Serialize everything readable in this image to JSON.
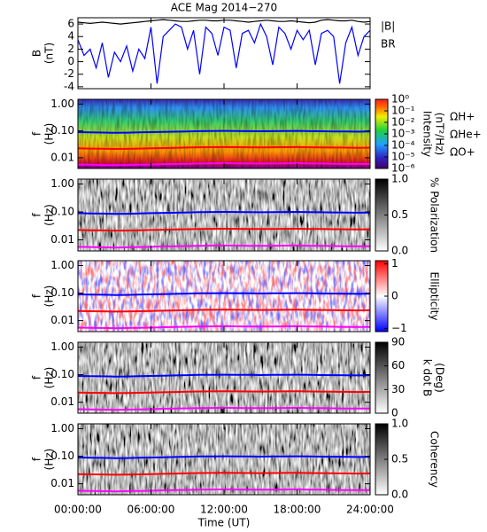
{
  "chart_data": [
    {
      "type": "line",
      "title": "ACE Mag 2014−270",
      "ylabel": [
        "B",
        "(nT)"
      ],
      "xlim": [
        0,
        24
      ],
      "ylim": [
        -4.3,
        7
      ],
      "yticks": [
        -4,
        -2,
        0,
        2,
        4,
        6
      ],
      "x": [
        0,
        0.5,
        1,
        1.5,
        2,
        2.5,
        3,
        3.5,
        4,
        4.5,
        5,
        5.5,
        6,
        6.5,
        7,
        7.5,
        8,
        8.5,
        9,
        9.5,
        10,
        10.5,
        11,
        11.5,
        12,
        12.5,
        13,
        13.5,
        14,
        14.5,
        15,
        15.5,
        16,
        16.5,
        17,
        17.5,
        18,
        18.5,
        19,
        19.5,
        20,
        20.5,
        21,
        21.5,
        22,
        22.5,
        23,
        23.5,
        24
      ],
      "series": [
        {
          "name": "|B|",
          "color": "#000000",
          "values": [
            6.3,
            6.2,
            6.1,
            6.2,
            6.3,
            6.2,
            6.1,
            6.0,
            6.1,
            6.2,
            6.3,
            6.4,
            6.5,
            6.6,
            6.7,
            6.6,
            6.5,
            6.4,
            6.4,
            6.5,
            6.6,
            6.6,
            6.5,
            6.5,
            6.6,
            6.6,
            6.5,
            6.4,
            6.3,
            6.4,
            6.5,
            6.6,
            6.5,
            6.4,
            6.4,
            6.5,
            6.4,
            6.3,
            6.2,
            6.3,
            6.6,
            6.7,
            6.6,
            6.5,
            6.5,
            6.6,
            6.4,
            6.3,
            6.4
          ]
        },
        {
          "name": "BR",
          "color": "#0000ff",
          "values": [
            3.5,
            1.0,
            2.0,
            -1.0,
            3.0,
            -2.5,
            1.5,
            0.0,
            2.5,
            -1.5,
            2.0,
            0.5,
            5.5,
            -3.5,
            4.0,
            5.0,
            6.0,
            5.5,
            2.0,
            5.0,
            -2.0,
            5.5,
            4.5,
            1.0,
            5.5,
            5.0,
            -1.0,
            4.5,
            5.0,
            3.0,
            6.0,
            4.0,
            -0.5,
            5.5,
            4.5,
            2.0,
            5.0,
            3.5,
            5.0,
            -0.5,
            4.5,
            5.0,
            4.0,
            -3.5,
            3.0,
            5.5,
            1.0,
            4.0,
            5.0
          ]
        }
      ]
    },
    {
      "type": "spectrogram",
      "ylabel": [
        "f",
        "(Hz)"
      ],
      "ylog": true,
      "ylim": [
        0.004,
        1.5
      ],
      "yticks": [
        {
          "value": 1,
          "label": "1.00"
        },
        {
          "value": 0.1,
          "label": "0.10"
        },
        {
          "value": 0.01,
          "label": "0.01"
        }
      ],
      "zlabel": [
        "Intensity",
        "(nT²/Hz)"
      ],
      "colormap": "rainbow",
      "zlog": true,
      "zlim": [
        1e-06,
        1
      ],
      "zticks": [
        {
          "value": 1,
          "label": "10⁰"
        },
        {
          "value": 0.1,
          "label": "10⁻¹"
        },
        {
          "value": 0.01,
          "label": "10⁻²"
        },
        {
          "value": 0.001,
          "label": "10⁻³"
        },
        {
          "value": 0.0001,
          "label": "10⁻⁴"
        },
        {
          "value": 1e-05,
          "label": "10⁻⁵"
        },
        {
          "value": 1e-06,
          "label": "10⁻⁶"
        }
      ],
      "x": [
        0,
        1,
        2,
        3,
        4,
        5,
        6,
        7,
        8,
        9,
        10,
        11,
        12,
        13,
        14,
        15,
        16,
        17,
        18,
        19,
        20,
        21,
        22,
        23,
        24
      ],
      "series": [
        {
          "name": "ΩH+",
          "color": "#0000ff",
          "values": [
            0.09,
            0.088,
            0.087,
            0.085,
            0.086,
            0.088,
            0.09,
            0.092,
            0.094,
            0.096,
            0.098,
            0.099,
            0.1,
            0.099,
            0.098,
            0.097,
            0.098,
            0.099,
            0.1,
            0.098,
            0.097,
            0.096,
            0.095,
            0.094,
            0.095
          ]
        },
        {
          "name": "ΩHe+",
          "color": "#ff0000",
          "values": [
            0.0225,
            0.022,
            0.0218,
            0.0213,
            0.0215,
            0.022,
            0.0225,
            0.023,
            0.0235,
            0.024,
            0.0245,
            0.0248,
            0.025,
            0.0248,
            0.0245,
            0.0243,
            0.0245,
            0.0248,
            0.025,
            0.0245,
            0.0243,
            0.024,
            0.0238,
            0.0235,
            0.0238
          ]
        },
        {
          "name": "ΩO+",
          "color": "#ff00ff",
          "values": [
            0.0056,
            0.0055,
            0.0054,
            0.0053,
            0.0054,
            0.0055,
            0.0056,
            0.0058,
            0.0059,
            0.006,
            0.0061,
            0.0062,
            0.0063,
            0.0062,
            0.0061,
            0.0061,
            0.0061,
            0.0062,
            0.0063,
            0.0061,
            0.0061,
            0.006,
            0.0059,
            0.0059,
            0.0059
          ]
        }
      ]
    },
    {
      "type": "spectrogram",
      "ylabel": [
        "f",
        "(Hz)"
      ],
      "ylog": true,
      "ylim": [
        0.004,
        1.5
      ],
      "yticks": [
        {
          "value": 1,
          "label": "1.00"
        },
        {
          "value": 0.1,
          "label": "0.10"
        },
        {
          "value": 0.01,
          "label": "0.01"
        }
      ],
      "zlabel": [
        "% Polarization"
      ],
      "colormap": "gray",
      "zlim": [
        0,
        1
      ],
      "zticks": [
        {
          "value": 0,
          "label": "0.0"
        },
        {
          "value": 0.5,
          "label": "0.5"
        },
        {
          "value": 1,
          "label": "1.0"
        }
      ]
    },
    {
      "type": "spectrogram",
      "ylabel": [
        "f",
        "(Hz)"
      ],
      "ylog": true,
      "ylim": [
        0.004,
        1.5
      ],
      "yticks": [
        {
          "value": 1,
          "label": "1.00"
        },
        {
          "value": 0.1,
          "label": "0.10"
        },
        {
          "value": 0.01,
          "label": "0.01"
        }
      ],
      "zlabel": [
        "Ellipticity"
      ],
      "colormap": "bwr",
      "zlim": [
        -1.1,
        1.1
      ],
      "zticks": [
        {
          "value": -1,
          "label": "−1"
        },
        0,
        1
      ]
    },
    {
      "type": "spectrogram",
      "ylabel": [
        "f",
        "(Hz)"
      ],
      "ylog": true,
      "ylim": [
        0.004,
        1.5
      ],
      "yticks": [
        {
          "value": 1,
          "label": "1.00"
        },
        {
          "value": 0.1,
          "label": "0.10"
        },
        {
          "value": 0.01,
          "label": "0.01"
        }
      ],
      "zlabel": [
        "k dot B",
        "(Deg)"
      ],
      "colormap": "gray",
      "zlim": [
        0,
        90
      ],
      "zticks": [
        0,
        30,
        60,
        90
      ]
    },
    {
      "type": "spectrogram",
      "ylabel": [
        "f",
        "(Hz)"
      ],
      "ylog": true,
      "ylim": [
        0.004,
        1.5
      ],
      "yticks": [
        {
          "value": 1,
          "label": "1.00"
        },
        {
          "value": 0.1,
          "label": "0.10"
        },
        {
          "value": 0.01,
          "label": "0.01"
        }
      ],
      "zlabel": [
        "Coherency"
      ],
      "colormap": "gray",
      "zlim": [
        0,
        1
      ],
      "zticks": [
        {
          "value": 0,
          "label": "0.0"
        },
        {
          "value": 0.5,
          "label": "0.5"
        },
        {
          "value": 1,
          "label": "1.0"
        }
      ],
      "xlim": [
        0,
        24
      ],
      "xlabel": "Time (UT)",
      "xticks": [
        {
          "value": 0,
          "label": "00:00:00"
        },
        {
          "value": 6,
          "label": "06:00:00"
        },
        {
          "value": 12,
          "label": "12:00:00"
        },
        {
          "value": 18,
          "label": "18:00:00"
        },
        {
          "value": 24,
          "label": "24:00:00"
        }
      ]
    }
  ]
}
